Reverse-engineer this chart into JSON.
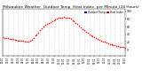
{
  "title": "Milwaukee Weather  Outdoor Temp  Heat Index  per Minute (24 Hours)",
  "title_fontsize": 3.2,
  "background_color": "#ffffff",
  "legend_labels": [
    "Outdoor Temp",
    "Heat Index"
  ],
  "legend_colors": [
    "#0000cc",
    "#cc0000"
  ],
  "ylim": [
    -15,
    105
  ],
  "ytick_vals": [
    0,
    20,
    40,
    60,
    80,
    100
  ],
  "xlim": [
    0,
    1440
  ],
  "xtick_step": 60,
  "grid_color": "#bbbbbb",
  "dot_color": "#ff0000",
  "dot_size": 1.2,
  "temp_data_x": [
    0,
    20,
    40,
    60,
    80,
    100,
    120,
    140,
    160,
    180,
    200,
    220,
    240,
    260,
    280,
    300,
    320,
    340,
    360,
    380,
    400,
    420,
    440,
    460,
    480,
    500,
    520,
    540,
    560,
    580,
    600,
    620,
    640,
    660,
    680,
    700,
    720,
    740,
    760,
    780,
    800,
    820,
    840,
    860,
    880,
    900,
    920,
    940,
    960,
    980,
    1000,
    1020,
    1040,
    1060,
    1080,
    1100,
    1120,
    1140,
    1160,
    1180,
    1200,
    1220,
    1240,
    1260,
    1280,
    1300,
    1320,
    1340,
    1360,
    1380,
    1400,
    1420,
    1440
  ],
  "temp_data_y": [
    32,
    31,
    30,
    29,
    28,
    27,
    27,
    26,
    25,
    24,
    24,
    23,
    23,
    22,
    22,
    22,
    23,
    25,
    30,
    36,
    40,
    45,
    50,
    55,
    60,
    65,
    68,
    70,
    72,
    74,
    76,
    78,
    80,
    82,
    83,
    84,
    85,
    84,
    83,
    82,
    80,
    77,
    74,
    70,
    66,
    62,
    58,
    54,
    50,
    46,
    43,
    40,
    37,
    35,
    32,
    30,
    28,
    26,
    24,
    22,
    20,
    18,
    16,
    14,
    13,
    12,
    11,
    10,
    9,
    8,
    7,
    7,
    6
  ]
}
